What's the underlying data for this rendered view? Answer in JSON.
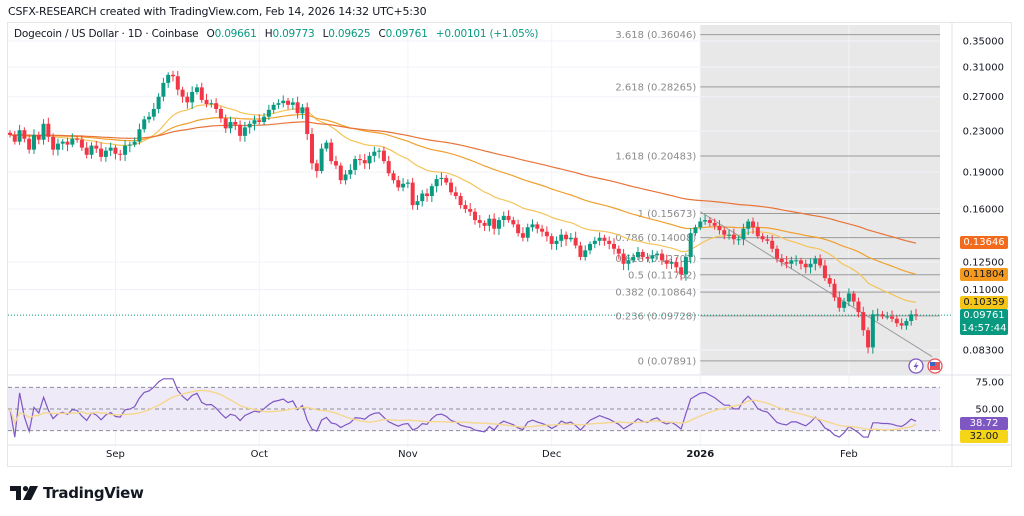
{
  "credit": "CSFX-RESEARCH created with TradingView.com, Feb 14, 2026 14:32 UTC+5:30",
  "legend": {
    "symbol": "Dogecoin / US Dollar · 1D · Coinbase",
    "open_label": "O",
    "open": "0.09661",
    "high_label": "H",
    "high": "0.09773",
    "low_label": "L",
    "low": "0.09625",
    "close_label": "C",
    "close": "0.09761",
    "change": "+0.00101 (+1.05%)"
  },
  "colors": {
    "up": "#089981",
    "down": "#f23645",
    "ema_fast": "#f5c45a",
    "ema_mid": "#f0a030",
    "ema_slow": "#e8743a",
    "rsi": "#7e57c2",
    "rsi_ma": "#f5d78e",
    "fib_zone": "#e8e8e8"
  },
  "chart_data": [
    {
      "type": "candlestick",
      "title": "Dogecoin / US Dollar · 1D · Coinbase",
      "yscale": "log",
      "ylim": [
        0.076,
        0.37
      ],
      "y_ticks": [
        "0.35000",
        "0.31000",
        "0.27000",
        "0.23000",
        "0.19000",
        "0.16000",
        "0.12500",
        "0.11000",
        "0.08300"
      ],
      "y_tick_values": [
        0.35,
        0.31,
        0.27,
        0.23,
        0.19,
        0.16,
        0.125,
        0.11,
        0.083
      ],
      "x_ticks": [
        "Sep",
        "Oct",
        "Nov",
        "Dec",
        "2026",
        "Feb"
      ],
      "x_tick_days": [
        22,
        52,
        83,
        113,
        144,
        175
      ],
      "x_range_days": [
        0,
        204
      ],
      "closes": [
        0.226,
        0.219,
        0.231,
        0.222,
        0.211,
        0.226,
        0.221,
        0.238,
        0.224,
        0.211,
        0.217,
        0.219,
        0.216,
        0.222,
        0.221,
        0.213,
        0.206,
        0.215,
        0.212,
        0.204,
        0.21,
        0.213,
        0.207,
        0.206,
        0.215,
        0.216,
        0.219,
        0.232,
        0.243,
        0.246,
        0.255,
        0.27,
        0.288,
        0.299,
        0.297,
        0.279,
        0.27,
        0.263,
        0.276,
        0.282,
        0.266,
        0.261,
        0.262,
        0.255,
        0.244,
        0.233,
        0.24,
        0.237,
        0.225,
        0.234,
        0.238,
        0.242,
        0.24,
        0.246,
        0.254,
        0.26,
        0.262,
        0.265,
        0.26,
        0.263,
        0.25,
        0.257,
        0.227,
        0.198,
        0.191,
        0.212,
        0.218,
        0.2,
        0.196,
        0.183,
        0.188,
        0.192,
        0.202,
        0.201,
        0.198,
        0.205,
        0.209,
        0.21,
        0.2,
        0.189,
        0.183,
        0.177,
        0.18,
        0.181,
        0.163,
        0.166,
        0.172,
        0.17,
        0.178,
        0.184,
        0.185,
        0.181,
        0.173,
        0.17,
        0.163,
        0.16,
        0.158,
        0.152,
        0.15,
        0.148,
        0.153,
        0.146,
        0.152,
        0.155,
        0.152,
        0.149,
        0.143,
        0.14,
        0.147,
        0.149,
        0.146,
        0.144,
        0.141,
        0.136,
        0.138,
        0.142,
        0.139,
        0.14,
        0.135,
        0.128,
        0.132,
        0.136,
        0.138,
        0.14,
        0.138,
        0.136,
        0.133,
        0.13,
        0.124,
        0.126,
        0.128,
        0.131,
        0.128,
        0.127,
        0.129,
        0.13,
        0.126,
        0.124,
        0.125,
        0.122,
        0.118,
        0.128,
        0.143,
        0.147,
        0.151,
        0.152,
        0.15,
        0.148,
        0.145,
        0.142,
        0.142,
        0.139,
        0.139,
        0.146,
        0.151,
        0.147,
        0.141,
        0.139,
        0.138,
        0.133,
        0.127,
        0.125,
        0.124,
        0.126,
        0.126,
        0.124,
        0.122,
        0.124,
        0.127,
        0.123,
        0.116,
        0.113,
        0.106,
        0.101,
        0.104,
        0.108,
        0.104,
        0.099,
        0.091,
        0.084,
        0.098,
        0.098,
        0.097,
        0.097,
        0.096,
        0.094,
        0.093,
        0.095,
        0.098,
        0.0976
      ],
      "ema_labels": [
        "0.13646",
        "0.11804",
        "0.10359"
      ],
      "ema_values": [
        0.13646,
        0.11804,
        0.10359
      ],
      "last_price": "0.09761",
      "countdown": "14:57:44",
      "fib": {
        "levels": [
          {
            "label": "3.618 (0.36046)",
            "value": 0.36046
          },
          {
            "label": "2.618 (0.28265)",
            "value": 0.28265
          },
          {
            "label": "1.618 (0.20483)",
            "value": 0.20483
          },
          {
            "label": "1 (0.15673)",
            "value": 0.15673
          },
          {
            "label": "0.786 (0.14008)",
            "value": 0.14008
          },
          {
            "label": "0.618 (0.12701)",
            "value": 0.12701
          },
          {
            "label": "0.5 (0.11782)",
            "value": 0.11782
          },
          {
            "label": "0.382 (0.10864)",
            "value": 0.10864
          },
          {
            "label": "0.236 (0.09728)",
            "value": 0.09728
          },
          {
            "label": "0 (0.07891)",
            "value": 0.07891
          }
        ],
        "start_day": 144
      }
    },
    {
      "type": "line",
      "title": "RSI",
      "ylim": [
        20,
        85
      ],
      "y_ticks": [
        "75.00",
        "50.00"
      ],
      "y_tick_values": [
        75,
        50
      ],
      "bands": [
        70,
        50,
        30
      ],
      "rsi_label": "38.72",
      "rsi_ma_label": "32.00",
      "rsi_value": 38.72,
      "rsi_ma_value": 32.0
    }
  ],
  "logo": {
    "text": "TradingView"
  }
}
